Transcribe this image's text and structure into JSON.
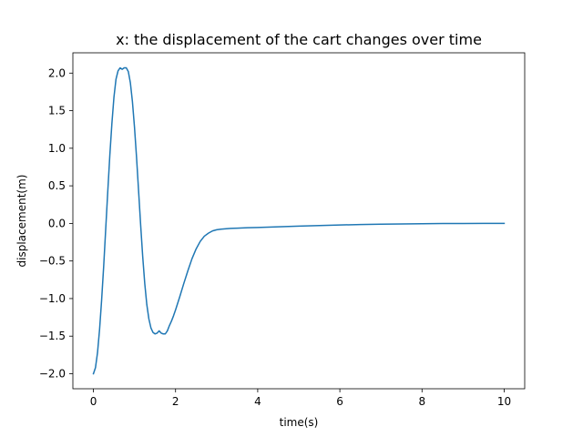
{
  "chart_data": {
    "type": "line",
    "title": "x: the displacement of the cart changes over time",
    "xlabel": "time(s)",
    "ylabel": "displacement(m)",
    "xlim": [
      -0.5,
      10.5
    ],
    "ylim": [
      -2.2,
      2.27
    ],
    "xticks": [
      0,
      2,
      4,
      6,
      8,
      10
    ],
    "xtick_labels": [
      "0",
      "2",
      "4",
      "6",
      "8",
      "10"
    ],
    "yticks": [
      -2.0,
      -1.5,
      -1.0,
      -0.5,
      0.0,
      0.5,
      1.0,
      1.5,
      2.0
    ],
    "ytick_labels": [
      "−2.0",
      "−1.5",
      "−1.0",
      "−0.5",
      "0.0",
      "0.5",
      "1.0",
      "1.5",
      "2.0"
    ],
    "grid": false,
    "legend": "none",
    "series": [
      {
        "color": "#1f77b4",
        "x": [
          0,
          0.05,
          0.1,
          0.15,
          0.2,
          0.25,
          0.3,
          0.35,
          0.4,
          0.45,
          0.5,
          0.55,
          0.6,
          0.65,
          0.7,
          0.75,
          0.8,
          0.85,
          0.9,
          0.95,
          1.0,
          1.05,
          1.1,
          1.15,
          1.2,
          1.25,
          1.3,
          1.35,
          1.4,
          1.45,
          1.5,
          1.55,
          1.6,
          1.65,
          1.7,
          1.75,
          1.8,
          1.85,
          1.9,
          1.95,
          2.0,
          2.1,
          2.2,
          2.3,
          2.4,
          2.5,
          2.6,
          2.7,
          2.8,
          2.9,
          3.0,
          3.1,
          3.2,
          3.3,
          3.4,
          3.5,
          3.75,
          4.0,
          4.5,
          5.0,
          5.5,
          6.0,
          6.5,
          7.0,
          7.5,
          8.0,
          8.5,
          9.0,
          9.5,
          10.0
        ],
        "y": [
          -2.0,
          -1.92,
          -1.72,
          -1.41,
          -1.02,
          -0.57,
          -0.07,
          0.43,
          0.91,
          1.33,
          1.68,
          1.92,
          2.03,
          2.07,
          2.05,
          2.07,
          2.07,
          2.02,
          1.87,
          1.62,
          1.28,
          0.88,
          0.43,
          -0.02,
          -0.44,
          -0.8,
          -1.08,
          -1.27,
          -1.39,
          -1.45,
          -1.47,
          -1.46,
          -1.43,
          -1.46,
          -1.47,
          -1.47,
          -1.43,
          -1.36,
          -1.3,
          -1.23,
          -1.15,
          -0.98,
          -0.8,
          -0.63,
          -0.47,
          -0.34,
          -0.24,
          -0.17,
          -0.13,
          -0.1,
          -0.085,
          -0.077,
          -0.072,
          -0.068,
          -0.065,
          -0.063,
          -0.058,
          -0.054,
          -0.045,
          -0.036,
          -0.028,
          -0.021,
          -0.015,
          -0.01,
          -0.007,
          -0.004,
          -0.002,
          -0.001,
          0.0,
          0.0
        ]
      }
    ]
  }
}
